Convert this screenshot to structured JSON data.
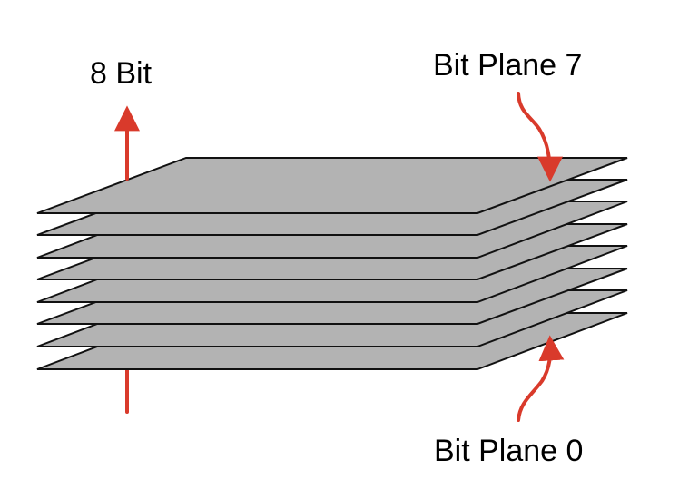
{
  "diagram": {
    "title_label": "8 Bit",
    "top_plane_label": "Bit Plane 7",
    "bottom_plane_label": "Bit Plane 0",
    "plane_count": 8
  },
  "colors": {
    "plane_fill": "#b3b3b3",
    "plane_stroke": "#111111",
    "arrow": "#d93a2b",
    "text": "#000000",
    "background": "#ffffff"
  }
}
